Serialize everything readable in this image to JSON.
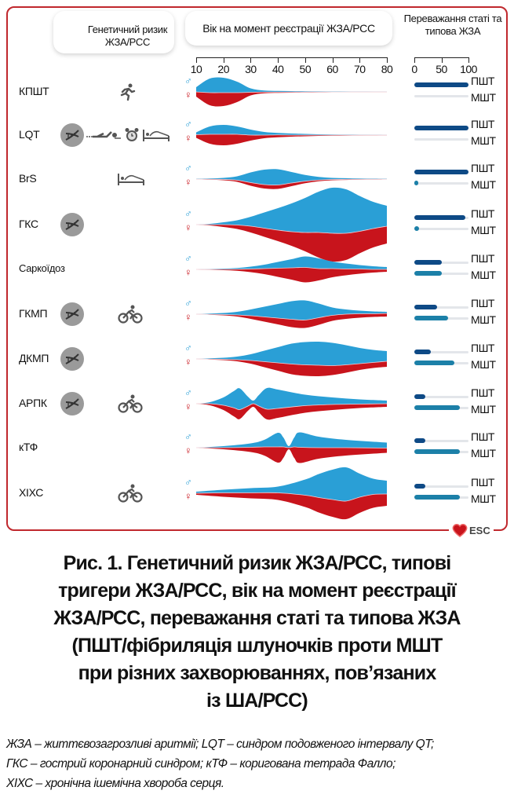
{
  "header": {
    "genetic_risk": "Генетичний ризик ЖЗА/РСС",
    "age": "Вік на момент реєстрації ЖЗА/РСС",
    "sex_vt": "Переважання статі та типова ЖЗА"
  },
  "colors": {
    "male": "#2a9fd6",
    "female": "#c8141c",
    "vt_bar": "#0e4a86",
    "mt_bar": "#1c80a8",
    "frame": "#c0282d"
  },
  "sex_symbols": {
    "male": "♂",
    "female": "♀"
  },
  "bar_labels": {
    "vt": "ПШТ",
    "mt": "МШТ"
  },
  "logo": "ESC",
  "chart_data": [
    {
      "type": "violin",
      "title": "Вік на момент реєстрації ЖЗА/РСС",
      "x_ticks": [
        "10",
        "20",
        "30",
        "40",
        "50",
        "60",
        "70",
        "80"
      ],
      "xlim": [
        10,
        80
      ],
      "series_names": [
        "male",
        "female"
      ],
      "rows": [
        {
          "label": "КПШТ",
          "ages": [
            10,
            15,
            20,
            25,
            30,
            35,
            40,
            45,
            50,
            55,
            60,
            65,
            70,
            75,
            80
          ],
          "male": [
            6,
            18,
            19,
            14,
            5,
            2,
            1.5,
            1.2,
            1,
            0.8,
            0.6,
            0.5,
            0.4,
            0.3,
            0.3
          ],
          "female": [
            6,
            16,
            17,
            12,
            4,
            1.5,
            1,
            0.8,
            0.6,
            0.5,
            0.4,
            0.3,
            0.3,
            0.2,
            0.2
          ]
        },
        {
          "label": "LQT",
          "ages": [
            10,
            15,
            20,
            25,
            30,
            35,
            40,
            45,
            50,
            55,
            60,
            65,
            70,
            75,
            80
          ],
          "male": [
            3,
            10,
            12,
            10,
            7,
            4,
            2.5,
            2,
            1.5,
            1,
            0.8,
            0.6,
            0.5,
            0.4,
            0.3
          ],
          "female": [
            4,
            12,
            14,
            12,
            7,
            4,
            3,
            2,
            1.5,
            1,
            0.8,
            0.6,
            0.5,
            0.4,
            0.3
          ]
        },
        {
          "label": "BrS",
          "ages": [
            10,
            15,
            20,
            25,
            30,
            35,
            40,
            45,
            50,
            55,
            60,
            65,
            70,
            75,
            80
          ],
          "male": [
            0.5,
            1,
            2,
            5,
            13,
            19,
            20,
            14,
            8,
            4,
            2,
            1.5,
            1,
            0.8,
            0.6
          ],
          "female": [
            0.3,
            0.5,
            1,
            2,
            4,
            5,
            5,
            4,
            2.5,
            1.5,
            1,
            0.7,
            0.5,
            0.4,
            0.3
          ]
        },
        {
          "label": "ГКС",
          "ages": [
            10,
            15,
            20,
            25,
            30,
            35,
            40,
            45,
            50,
            55,
            60,
            65,
            70,
            75,
            80
          ],
          "male": [
            0,
            1,
            3,
            6,
            12,
            20,
            28,
            36,
            44,
            52,
            58,
            56,
            45,
            34,
            26
          ],
          "female": [
            0,
            1,
            3,
            5,
            8,
            11,
            14,
            18,
            24,
            32,
            36,
            34,
            28,
            24,
            22
          ]
        },
        {
          "label": "Саркоїдоз",
          "ages": [
            10,
            15,
            20,
            25,
            30,
            35,
            40,
            45,
            50,
            55,
            60,
            65,
            70,
            75,
            80
          ],
          "male": [
            0,
            0.5,
            1,
            1.5,
            3,
            5,
            8,
            11,
            14,
            13,
            9,
            7,
            5,
            4,
            3
          ],
          "female": [
            0,
            0.5,
            1,
            2,
            4,
            7,
            11,
            15,
            19,
            15,
            11,
            8,
            6,
            4,
            3
          ]
        },
        {
          "label": "ГКМП",
          "ages": [
            10,
            15,
            20,
            25,
            30,
            35,
            40,
            45,
            50,
            55,
            60,
            65,
            70,
            75,
            80
          ],
          "male": [
            0,
            1,
            2,
            4,
            8,
            13,
            18,
            23,
            25,
            18,
            10,
            6,
            4,
            3,
            2
          ],
          "female": [
            0,
            0.5,
            1,
            2,
            4,
            6,
            8,
            10,
            10,
            9,
            7,
            6,
            5,
            4,
            4
          ]
        },
        {
          "label": "ДКМП",
          "ages": [
            10,
            15,
            20,
            25,
            30,
            35,
            40,
            45,
            50,
            55,
            60,
            65,
            70,
            75,
            80
          ],
          "male": [
            0,
            1,
            2,
            4,
            8,
            14,
            20,
            26,
            29,
            30,
            29,
            25,
            20,
            16,
            13
          ],
          "female": [
            0,
            0.5,
            1,
            2,
            4,
            7,
            10,
            13,
            14,
            14,
            12,
            10,
            8,
            7,
            7
          ]
        },
        {
          "label": "АРПК",
          "ages": [
            10,
            15,
            20,
            24,
            26,
            29,
            31,
            33,
            36,
            40,
            50,
            60,
            70,
            80
          ],
          "male": [
            0,
            2,
            10,
            22,
            27,
            12,
            4,
            14,
            27,
            24,
            14,
            9,
            6,
            4
          ],
          "female": [
            0,
            2,
            6,
            11,
            12,
            6,
            4,
            8,
            13,
            12,
            9,
            7,
            5,
            4
          ]
        },
        {
          "label": "кТФ",
          "ages": [
            10,
            20,
            30,
            35,
            40,
            42,
            44,
            46,
            48,
            55,
            65,
            80
          ],
          "male": [
            0,
            2,
            5,
            9,
            18,
            12,
            2,
            12,
            19,
            14,
            10,
            7
          ],
          "female": [
            0,
            2,
            6,
            11,
            20,
            14,
            2,
            14,
            20,
            14,
            10,
            6
          ]
        },
        {
          "label": "ХІХС",
          "ages": [
            10,
            20,
            30,
            40,
            50,
            55,
            60,
            65,
            70,
            75,
            80
          ],
          "male": [
            2,
            4,
            6,
            8,
            20,
            30,
            38,
            43,
            30,
            20,
            17
          ],
          "female": [
            2,
            5,
            7,
            9,
            15,
            19,
            22,
            23,
            20,
            17,
            15
          ]
        }
      ]
    },
    {
      "type": "bar",
      "title": "Переважання статі та типова ЖЗА",
      "x_ticks": [
        "0",
        "50",
        "100"
      ],
      "xlim": [
        0,
        100
      ],
      "series": [
        {
          "name": "ПШТ",
          "values": [
            100,
            100,
            100,
            94,
            50,
            42,
            30,
            20,
            20,
            20
          ]
        },
        {
          "name": "МШТ",
          "values": [
            0,
            0,
            3,
            8,
            50,
            62,
            74,
            84,
            84,
            84
          ]
        }
      ]
    }
  ],
  "rows": [
    {
      "label": "КПШТ",
      "genetic": false,
      "triggers": [
        "running-icon"
      ]
    },
    {
      "label": "LQT",
      "genetic": true,
      "triggers": [
        "swimming-icon",
        "alarm-clock-icon",
        "bed-icon"
      ]
    },
    {
      "label": "BrS",
      "genetic": false,
      "triggers": [
        "bed-icon"
      ]
    },
    {
      "label": "ГКС",
      "genetic": true,
      "triggers": []
    },
    {
      "label": "Саркоїдоз",
      "genetic": false,
      "triggers": []
    },
    {
      "label": "ГКМП",
      "genetic": true,
      "triggers": [
        "cycling-icon"
      ]
    },
    {
      "label": "ДКМП",
      "genetic": true,
      "triggers": []
    },
    {
      "label": "АРПК",
      "genetic": true,
      "triggers": [
        "cycling-icon"
      ]
    },
    {
      "label": "кТФ",
      "genetic": false,
      "triggers": []
    },
    {
      "label": "ХІХС",
      "genetic": false,
      "triggers": [
        "cycling-icon"
      ]
    }
  ],
  "caption": [
    "Рис. 1. Генетичний ризик ЖЗА/РСС, типові",
    "тригери ЖЗА/РСС, вік на момент реєстрації",
    "ЖЗА/РСС, переважання статі та типова ЖЗА",
    "(ПШТ/фібриляція шлуночків проти МШТ",
    "при різних захворюваннях, пов’язаних",
    "із ША/РСС)"
  ],
  "footnote": [
    "ЖЗА – життєвозагрозливі аритмії; LQT – синдром подовженого інтервалу QT;",
    "ГКС – гострий коронарний синдром; кТФ – коригована тетрада Фалло;",
    "ХІХС – хронічна ішемічна хвороба серця."
  ]
}
